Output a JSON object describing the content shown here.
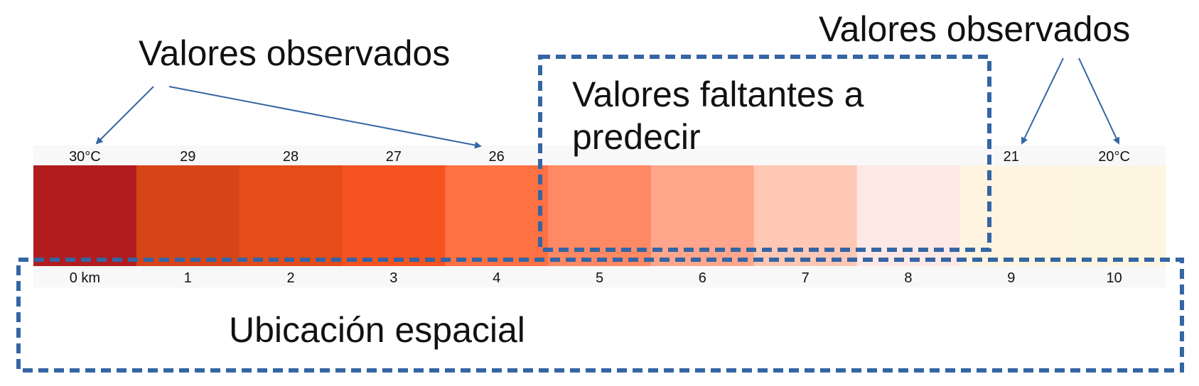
{
  "labels": {
    "observed_left": "Valores observados",
    "observed_right": "Valores observados",
    "missing_line1": "Valores faltantes a",
    "missing_line2": "predecir",
    "spatial": "Ubicación espacial"
  },
  "strip": {
    "cells": [
      {
        "top": "30°C",
        "bottom": "0 km",
        "color": "#b21c1e"
      },
      {
        "top": "29",
        "bottom": "1",
        "color": "#d64417"
      },
      {
        "top": "28",
        "bottom": "2",
        "color": "#e44c1a"
      },
      {
        "top": "27",
        "bottom": "3",
        "color": "#f5531f"
      },
      {
        "top": "26",
        "bottom": "4",
        "color": "#fe7143"
      },
      {
        "top": "",
        "bottom": "5",
        "color": "#ff8963"
      },
      {
        "top": "",
        "bottom": "6",
        "color": "#ffa68b"
      },
      {
        "top": "",
        "bottom": "7",
        "color": "#ffc8b4"
      },
      {
        "top": "",
        "bottom": "8",
        "color": "#fde8e5"
      },
      {
        "top": "21",
        "bottom": "9",
        "color": "#fef4e0"
      },
      {
        "top": "20°C",
        "bottom": "10",
        "color": "#fdf5e0"
      }
    ]
  },
  "colors": {
    "accent": "#3465a4",
    "label_band": "#f8f8f8"
  }
}
